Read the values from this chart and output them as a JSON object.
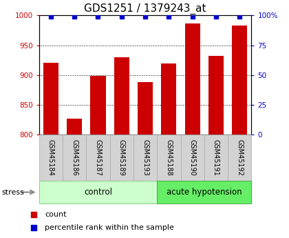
{
  "title": "GDS1251 / 1379243_at",
  "samples": [
    "GSM45184",
    "GSM45186",
    "GSM45187",
    "GSM45189",
    "GSM45193",
    "GSM45188",
    "GSM45190",
    "GSM45191",
    "GSM45192"
  ],
  "counts": [
    921,
    827,
    898,
    930,
    888,
    919,
    987,
    932,
    983
  ],
  "percentiles": [
    99,
    99,
    99,
    99,
    99,
    99,
    99,
    99,
    99
  ],
  "groups": [
    {
      "label": "control",
      "start": 0,
      "end": 5,
      "color": "#ccffcc",
      "edge": "#88cc88"
    },
    {
      "label": "acute hypotension",
      "start": 5,
      "end": 9,
      "color": "#66ee66",
      "edge": "#44aa44"
    }
  ],
  "stress_label": "stress",
  "bar_color": "#cc0000",
  "percentile_color": "#0000cc",
  "ylim_left": [
    800,
    1000
  ],
  "ylim_right": [
    0,
    100
  ],
  "yticks_left": [
    800,
    850,
    900,
    950,
    1000
  ],
  "yticks_right": [
    0,
    25,
    50,
    75,
    100
  ],
  "bar_width": 0.65,
  "title_fontsize": 11,
  "tick_label_fontsize": 7.5,
  "legend_fontsize": 8,
  "group_label_fontsize": 8.5,
  "sample_label_fontsize": 7,
  "left_tick_color": "#cc0000",
  "right_tick_color": "#0000cc"
}
